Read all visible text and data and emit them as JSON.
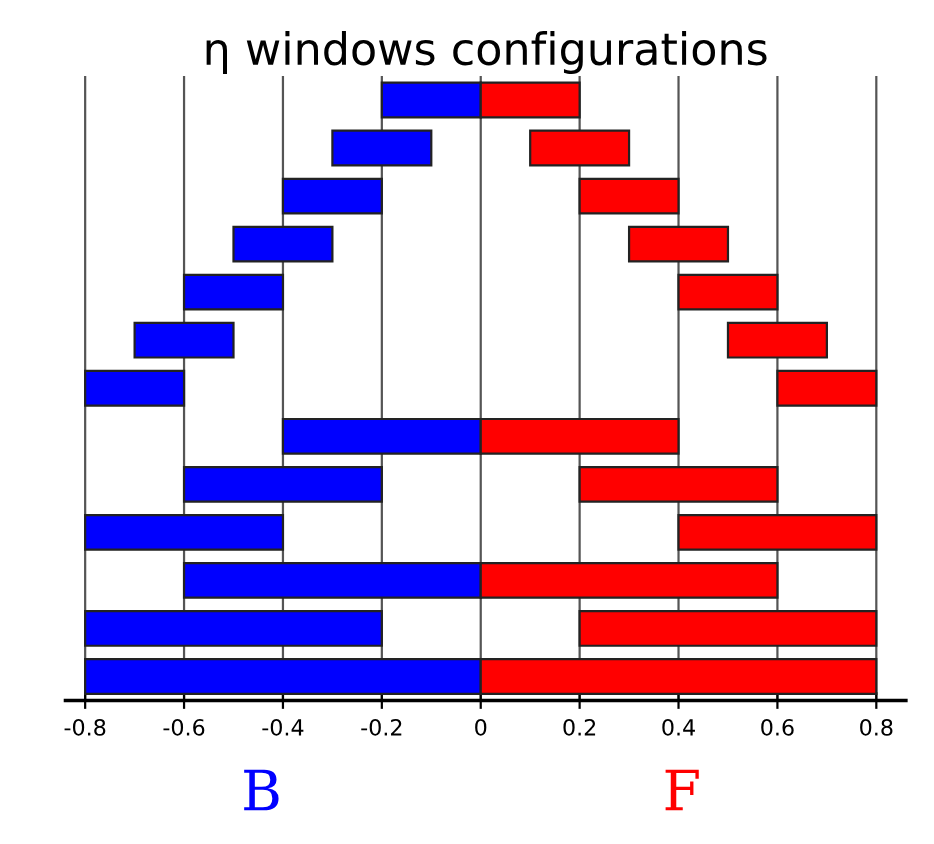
{
  "chart_data": {
    "type": "bar",
    "orientation": "horizontal",
    "title": "η windows configurations",
    "categories": [
      null,
      null,
      null,
      null,
      null,
      null,
      null,
      null,
      null,
      null,
      null,
      null,
      null
    ],
    "series": [
      {
        "color": "#0000ff",
        "values": [
          0.2,
          0.2,
          0.2,
          0.2,
          0.2,
          0.2,
          0.2,
          0.4,
          0.4,
          0.4,
          0.6,
          0.6,
          0.8
        ],
        "base": [
          -0.2,
          -0.3,
          -0.4,
          -0.5,
          -0.6,
          -0.7,
          -0.8,
          -0.4,
          -0.6,
          -0.8,
          -0.6,
          -0.8,
          -0.8
        ]
      },
      {
        "color": "#ff0000",
        "values": [
          0.2,
          0.2,
          0.2,
          0.2,
          0.2,
          0.2,
          0.2,
          0.4,
          0.4,
          0.4,
          0.6,
          0.6,
          0.8
        ],
        "base": [
          0,
          0.1,
          0.2,
          0.3,
          0.4,
          0.5,
          0.6,
          0,
          0.2,
          0.4,
          0,
          0.2,
          0
        ]
      }
    ],
    "xlim": [
      -0.84,
      0.86
    ],
    "xticks": [
      -0.8,
      -0.6,
      -0.4,
      -0.2,
      0,
      0.2,
      0.4,
      0.6,
      0.8
    ],
    "tick_labels": "x",
    "grid": "x",
    "annotations": [
      "B",
      "F"
    ]
  }
}
